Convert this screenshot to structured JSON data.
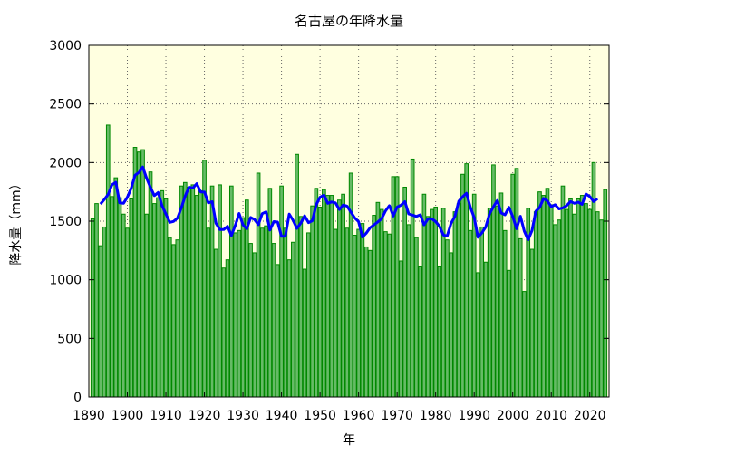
{
  "chart_data": {
    "type": "bar",
    "title": "名古屋の年降水量",
    "xlabel": "年",
    "ylabel": "降水量（mm）",
    "x_start": 1891,
    "xlim": [
      1890,
      2025
    ],
    "ylim": [
      0,
      3000
    ],
    "x_ticks": [
      1890,
      1900,
      1910,
      1920,
      1930,
      1940,
      1950,
      1960,
      1970,
      1980,
      1990,
      2000,
      2010,
      2020
    ],
    "y_ticks": [
      0,
      500,
      1000,
      1500,
      2000,
      2500,
      3000
    ],
    "grid": true,
    "values": [
      1520,
      1650,
      1290,
      1450,
      2320,
      1710,
      1870,
      1700,
      1560,
      1440,
      1690,
      2130,
      2090,
      2110,
      1560,
      1920,
      1650,
      1700,
      1760,
      1690,
      1360,
      1300,
      1340,
      1800,
      1830,
      1790,
      1810,
      1720,
      1760,
      2020,
      1440,
      1800,
      1260,
      1810,
      1100,
      1170,
      1800,
      1400,
      1420,
      1530,
      1680,
      1310,
      1230,
      1910,
      1440,
      1460,
      1780,
      1310,
      1130,
      1800,
      1440,
      1170,
      1320,
      2070,
      1540,
      1090,
      1400,
      1630,
      1780,
      1620,
      1770,
      1720,
      1720,
      1430,
      1680,
      1730,
      1440,
      1910,
      1380,
      1430,
      1480,
      1280,
      1250,
      1550,
      1660,
      1600,
      1410,
      1390,
      1880,
      1880,
      1160,
      1790,
      1470,
      2030,
      1360,
      1110,
      1730,
      1540,
      1600,
      1620,
      1110,
      1610,
      1340,
      1230,
      1580,
      1650,
      1900,
      1990,
      1420,
      1730,
      1060,
      1450,
      1150,
      1610,
      1980,
      1630,
      1740,
      1420,
      1080,
      1900,
      1950,
      1350,
      900,
      1610,
      1260,
      1580,
      1750,
      1720,
      1780,
      1640,
      1470,
      1510,
      1800,
      1600,
      1690,
      1560,
      1690,
      1720,
      1650,
      1600,
      2000,
      1580,
      1510,
      1770
    ],
    "moving_average": {
      "window": 5,
      "color": "#0000ff"
    },
    "colors": {
      "plot_background": "#ffffe0",
      "bar_fill": "#66bb66",
      "bar_stroke": "#008800",
      "line": "#0000ff"
    }
  }
}
